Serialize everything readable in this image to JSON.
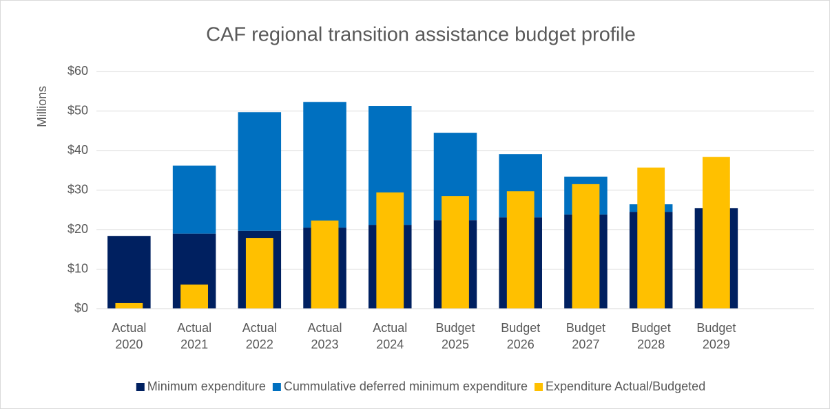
{
  "chart_data": {
    "type": "bar",
    "title": "CAF regional transition assistance budget profile",
    "y_label": "Millions",
    "categories": [
      [
        "Actual",
        "2020"
      ],
      [
        "Actual",
        "2021"
      ],
      [
        "Actual",
        "2022"
      ],
      [
        "Actual",
        "2023"
      ],
      [
        "Actual",
        "2024"
      ],
      [
        "Budget",
        "2025"
      ],
      [
        "Budget",
        "2026"
      ],
      [
        "Budget",
        "2027"
      ],
      [
        "Budget",
        "2028"
      ],
      [
        "Budget",
        "2029"
      ]
    ],
    "series": [
      {
        "name": "Minimum expenditure",
        "color": "#002060",
        "values": [
          18.4,
          19.0,
          19.7,
          20.5,
          21.2,
          22.4,
          23.1,
          23.8,
          24.5,
          25.4
        ]
      },
      {
        "name": "Cummulative deferred minimum expenditure",
        "color": "#0070c0",
        "values": [
          0,
          17.2,
          30.0,
          31.8,
          30.1,
          22.1,
          16.0,
          9.6,
          1.9,
          0
        ]
      },
      {
        "name": "Expenditure Actual/Budgeted",
        "color": "#ffc000",
        "values": [
          1.4,
          6.1,
          17.9,
          22.3,
          29.4,
          28.5,
          29.7,
          31.5,
          35.7,
          38.4
        ]
      }
    ],
    "ylim": [
      0,
      60
    ],
    "yticks": [
      {
        "value": 0,
        "label": "$0"
      },
      {
        "value": 10,
        "label": "$10"
      },
      {
        "value": 20,
        "label": "$20"
      },
      {
        "value": 30,
        "label": "$30"
      },
      {
        "value": 40,
        "label": "$40"
      },
      {
        "value": 50,
        "label": "$50"
      },
      {
        "value": 60,
        "label": "$60"
      }
    ],
    "grid": true,
    "legend": "bottom"
  }
}
